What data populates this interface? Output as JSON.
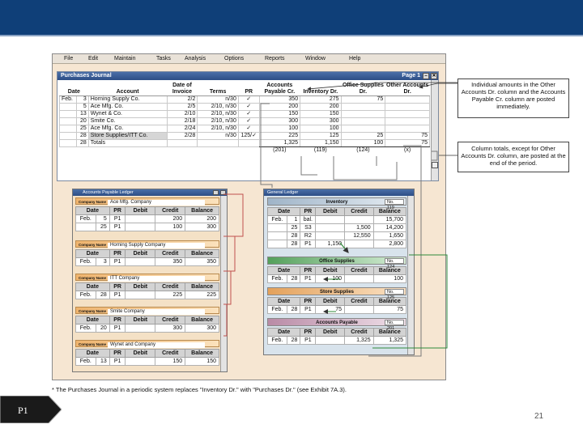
{
  "menu": [
    "File",
    "Edit",
    "Maintain",
    "Tasks",
    "Analysis",
    "Options",
    "Reports",
    "Window",
    "Help"
  ],
  "purchases_journal": {
    "title": "Purchases Journal",
    "page_label": "Page 1",
    "headers": [
      "Date",
      "Account",
      "Date of Invoice",
      "Terms",
      "PR",
      "Accounts Payable Cr.",
      "Inventory Dr.",
      "Office Supplies Dr.",
      "Other Accounts Dr."
    ],
    "rows": [
      {
        "m": "Feb.",
        "d": "3",
        "acct": "Horning Supply Co.",
        "inv": "2/2",
        "terms": "n/30",
        "pr": "✓",
        "ap": "350",
        "invd": "275",
        "os": "75",
        "oth": ""
      },
      {
        "m": "",
        "d": "5",
        "acct": "Ace Mfg. Co.",
        "inv": "2/5",
        "terms": "2/10, n/30",
        "pr": "✓",
        "ap": "200",
        "invd": "200",
        "os": "",
        "oth": ""
      },
      {
        "m": "",
        "d": "13",
        "acct": "Wynet & Co.",
        "inv": "2/10",
        "terms": "2/10, n/30",
        "pr": "✓",
        "ap": "150",
        "invd": "150",
        "os": "",
        "oth": ""
      },
      {
        "m": "",
        "d": "20",
        "acct": "Smite Co.",
        "inv": "2/18",
        "terms": "2/10, n/30",
        "pr": "✓",
        "ap": "300",
        "invd": "300",
        "os": "",
        "oth": ""
      },
      {
        "m": "",
        "d": "25",
        "acct": "Ace Mfg. Co.",
        "inv": "2/24",
        "terms": "2/10, n/30",
        "pr": "✓",
        "ap": "100",
        "invd": "100",
        "os": "",
        "oth": ""
      },
      {
        "m": "",
        "d": "28",
        "acct": "Store Supplies/ITT Co.",
        "inv": "2/28",
        "terms": "n/30",
        "pr": "125/✓",
        "ap": "225",
        "invd": "125",
        "os": "25",
        "oth": "75"
      },
      {
        "m": "",
        "d": "28",
        "acct": "Totals",
        "inv": "",
        "terms": "",
        "pr": "",
        "ap": "1,325",
        "invd": "1,150",
        "os": "100",
        "oth": "75"
      }
    ],
    "posting_refs": {
      "ap": "(201)",
      "invd": "(119)",
      "os": "(124)",
      "oth": "(x)"
    }
  },
  "ap_ledger": {
    "title": "Accounts Payable Ledger",
    "company_label": "Company Name",
    "headers": [
      "Date",
      "PR",
      "Debit",
      "Credit",
      "Balance"
    ],
    "companies": [
      {
        "name": "Ace Mfg. Company",
        "rows": [
          {
            "m": "Feb.",
            "d": "5",
            "pr": "P1",
            "debit": "",
            "credit": "200",
            "bal": "200"
          },
          {
            "m": "",
            "d": "25",
            "pr": "P1",
            "debit": "",
            "credit": "100",
            "bal": "300"
          }
        ]
      },
      {
        "name": "Horning Supply Company",
        "rows": [
          {
            "m": "Feb.",
            "d": "3",
            "pr": "P1",
            "debit": "",
            "credit": "350",
            "bal": "350"
          }
        ]
      },
      {
        "name": "ITT Company",
        "rows": [
          {
            "m": "Feb.",
            "d": "28",
            "pr": "P1",
            "debit": "",
            "credit": "225",
            "bal": "225"
          }
        ]
      },
      {
        "name": "Smite Company",
        "rows": [
          {
            "m": "Feb.",
            "d": "20",
            "pr": "P1",
            "debit": "",
            "credit": "300",
            "bal": "300"
          }
        ]
      },
      {
        "name": "Wynet and Company",
        "rows": [
          {
            "m": "Feb.",
            "d": "13",
            "pr": "P1",
            "debit": "",
            "credit": "150",
            "bal": "150"
          }
        ]
      }
    ]
  },
  "general_ledger": {
    "title": "General Ledger",
    "no_label": "No.",
    "headers": [
      "Date",
      "PR",
      "Debit",
      "Credit",
      "Balance"
    ],
    "accounts": [
      {
        "name": "Inventory",
        "no": "119",
        "rows": [
          {
            "m": "Feb.",
            "d": "1",
            "pr": "bal.",
            "debit": "",
            "credit": "",
            "bal": "15,700"
          },
          {
            "m": "",
            "d": "25",
            "pr": "S3",
            "debit": "",
            "credit": "1,500",
            "bal": "14,200"
          },
          {
            "m": "",
            "d": "28",
            "pr": "R2",
            "debit": "",
            "credit": "12,550",
            "bal": "1,650"
          },
          {
            "m": "",
            "d": "28",
            "pr": "P1",
            "debit": "1,150",
            "credit": "",
            "bal": "2,800"
          }
        ]
      },
      {
        "name": "Office Supplies",
        "no": "124",
        "rows": [
          {
            "m": "Feb.",
            "d": "28",
            "pr": "P1",
            "debit": "100",
            "credit": "",
            "bal": "100"
          }
        ]
      },
      {
        "name": "Store Supplies",
        "no": "125",
        "rows": [
          {
            "m": "Feb.",
            "d": "28",
            "pr": "P1",
            "debit": "75",
            "credit": "",
            "bal": "75"
          }
        ]
      },
      {
        "name": "Accounts Payable",
        "no": "201",
        "rows": [
          {
            "m": "Feb.",
            "d": "28",
            "pr": "P1",
            "debit": "",
            "credit": "1,325",
            "bal": "1,325"
          }
        ]
      }
    ]
  },
  "callouts": {
    "individual": "Individual amounts in the Other Accounts Dr. column and the Accounts Payable Cr. column are posted immediately.",
    "totals": "Column totals, except for Other Accounts Dr. column, are posted at the end of the period."
  },
  "footnote": "* The Purchases Journal in a periodic system replaces \"Inventory Dr.\" with \"Purchases Dr.\" (see Exhibit 7A.3).",
  "slide_tag": "P1",
  "page_number": "21",
  "colors": {
    "header_bar": "#0f3f78",
    "arrow_green": "#2f8a3a",
    "arrow_red": "#c0504d",
    "arrow_gray": "#7a7a7a"
  }
}
